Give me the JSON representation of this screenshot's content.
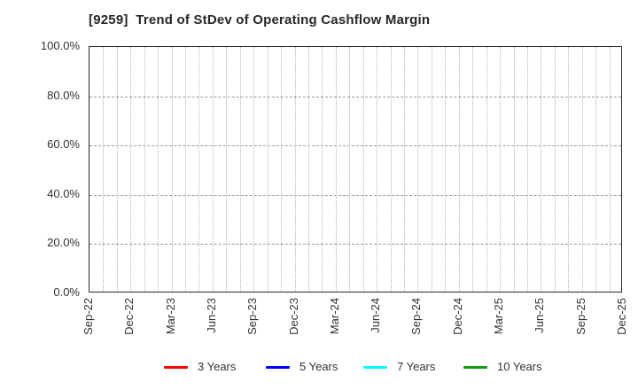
{
  "chart_data": {
    "type": "line",
    "title": "[9259]  Trend of StDev of Operating Cashflow Margin",
    "x_tick_labels": [
      "Sep-22",
      "Dec-22",
      "Mar-23",
      "Jun-23",
      "Sep-23",
      "Dec-23",
      "Mar-24",
      "Jun-24",
      "Sep-24",
      "Dec-24",
      "Mar-25",
      "Jun-25",
      "Sep-25",
      "Dec-25"
    ],
    "y_tick_labels": [
      "0.0%",
      "20.0%",
      "40.0%",
      "60.0%",
      "80.0%",
      "100.0%"
    ],
    "ylim": [
      0,
      100
    ],
    "grid": "on",
    "grid_style": {
      "horizontal": "dashed-major-20pct",
      "vertical": "dotted-minor-monthly"
    },
    "legend_position": "bottom",
    "series": [
      {
        "name": "3 Years",
        "color": "#ff0000",
        "values": []
      },
      {
        "name": "5 Years",
        "color": "#0000ff",
        "values": []
      },
      {
        "name": "7 Years",
        "color": "#00ffff",
        "values": []
      },
      {
        "name": "10 Years",
        "color": "#169b16",
        "values": []
      }
    ],
    "note": "plot area contains gridlines only; no data lines are drawn"
  },
  "colors": {
    "background": "#ffffff",
    "plot_border": "#2b2b2b",
    "grid_horizontal": "#999999",
    "grid_vertical": "#b3b3b3",
    "title_text": "#262626",
    "tick_text": "#333333"
  }
}
